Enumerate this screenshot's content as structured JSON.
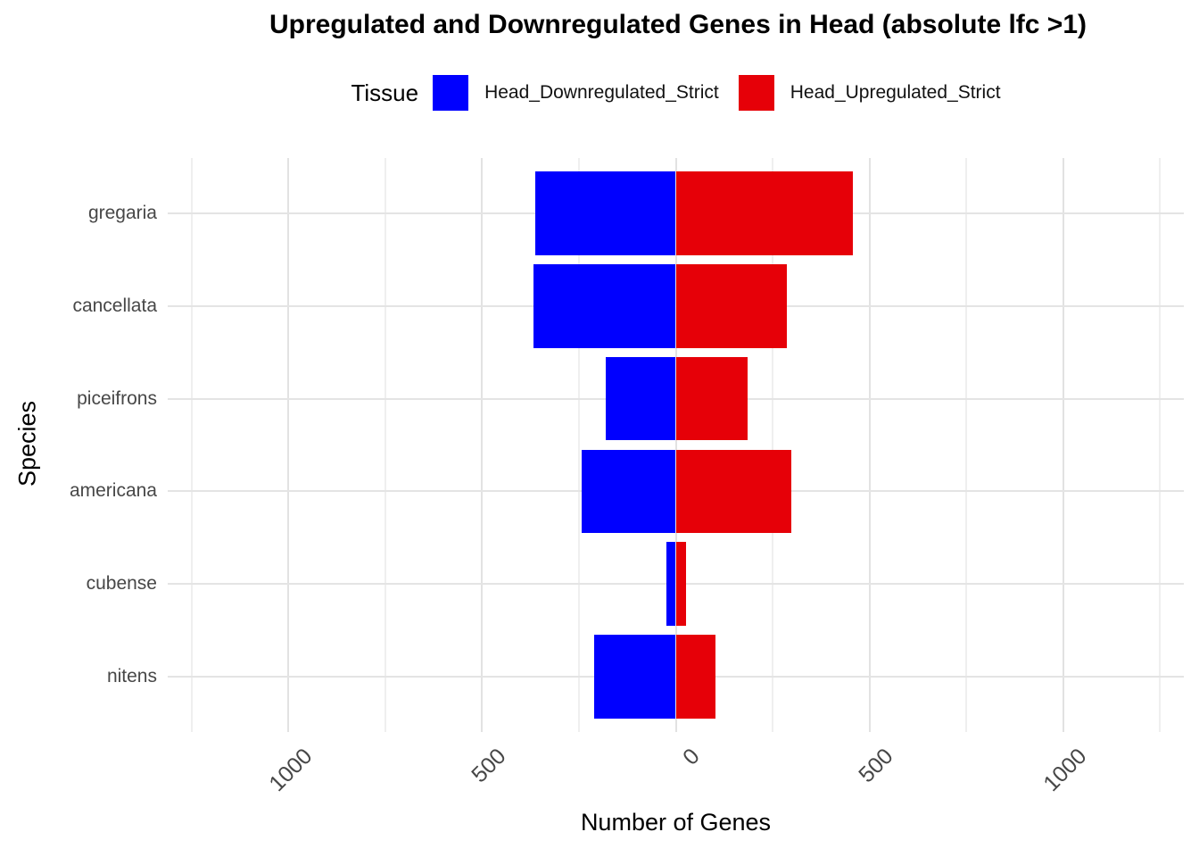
{
  "title": "Upregulated and Downregulated Genes in Head (absolute lfc >1)",
  "legend": {
    "title": "Tissue",
    "items": [
      {
        "label": "Head_Downregulated_Strict",
        "color": "#0000ff"
      },
      {
        "label": "Head_Upregulated_Strict",
        "color": "#e60008"
      }
    ]
  },
  "chart_data": {
    "type": "bar",
    "orientation": "horizontal-diverging",
    "title": "Upregulated and Downregulated Genes in Head (absolute lfc >1)",
    "xlabel": "Number of Genes",
    "ylabel": "Species",
    "categories": [
      "gregaria",
      "cancellata",
      "piceifrons",
      "americana",
      "cubense",
      "nitens"
    ],
    "series": [
      {
        "name": "Head_Downregulated_Strict",
        "color": "#0000ff",
        "values": [
          -363,
          -368,
          -180,
          -242,
          -24,
          -210
        ]
      },
      {
        "name": "Head_Upregulated_Strict",
        "color": "#e60008",
        "values": [
          457,
          287,
          185,
          298,
          27,
          102
        ]
      }
    ],
    "xlim": [
      -1312,
      1312
    ],
    "x_major_ticks": [
      -1000,
      -500,
      0,
      500,
      1000
    ],
    "x_tick_labels": [
      "1000",
      "500",
      "0",
      "500",
      "1000"
    ],
    "x_minor_ticks": [
      -1250,
      -750,
      -250,
      250,
      750,
      1250
    ],
    "grid": {
      "vertical": "major+minor",
      "horizontal": "category centers"
    },
    "legend_position": "top"
  },
  "colors": {
    "background": "#ffffff",
    "grid_major": "#e2e2e2",
    "grid_minor": "#efefef",
    "tick_text": "#474747",
    "title_text": "#000000"
  }
}
